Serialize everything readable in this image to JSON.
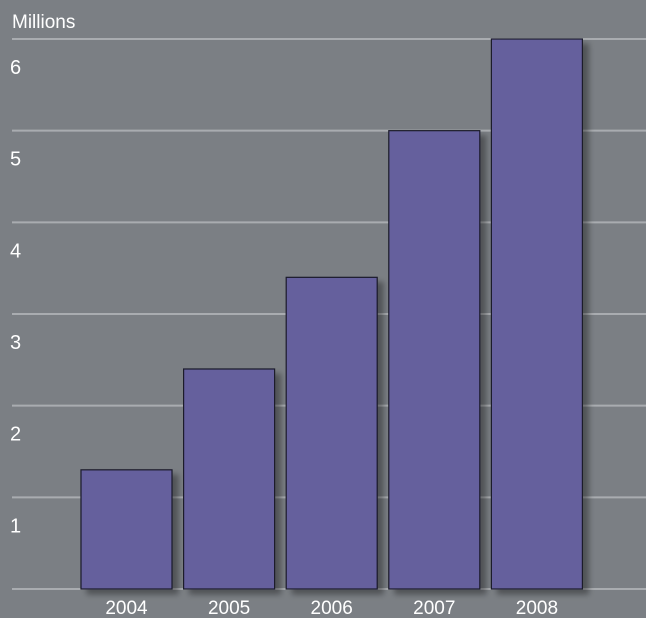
{
  "colors": {
    "background": "#7b7f84",
    "gridline": "#a9acb0",
    "bar_fill": "#65609d",
    "bar_stroke": "#1a1a2a",
    "text": "#ffffff"
  },
  "chart_data": {
    "type": "bar",
    "unit_label": "Millions",
    "categories": [
      "2004",
      "2005",
      "2006",
      "2007",
      "2008"
    ],
    "values": [
      1.3,
      2.4,
      3.4,
      5.0,
      6.0
    ],
    "ylim": [
      0,
      6
    ],
    "yticks": [
      "1",
      "2",
      "3",
      "4",
      "5",
      "6"
    ],
    "grid": true,
    "legend": "none"
  }
}
